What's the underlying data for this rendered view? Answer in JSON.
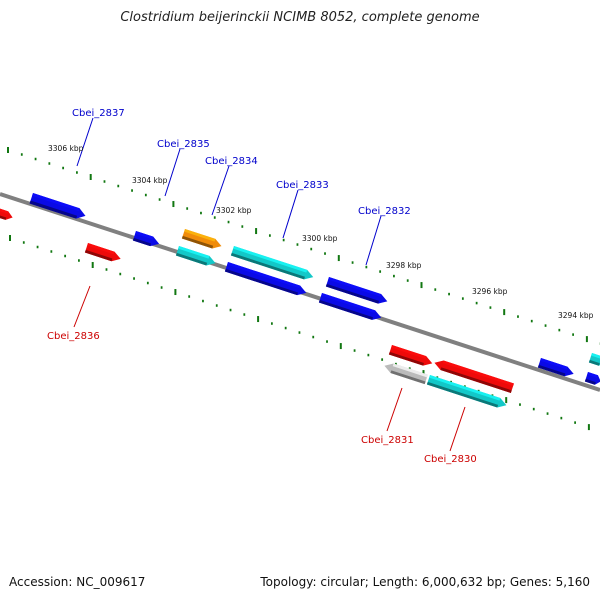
{
  "title": "Clostridium beijerinckii NCIMB 8052, complete genome",
  "footer": {
    "accession": "Accession: NC_009617",
    "summary": "Topology: circular; Length: 6,000,632 bp; Genes: 5,160"
  },
  "colors": {
    "backbone": "#808080",
    "tick": "#117711",
    "blue": "#0a0ae6",
    "red": "#ee0a0a",
    "cyan": "#13c8c8",
    "orange": "#f08c0a",
    "gray": "#bbbbbb",
    "label_top": "#0000cc",
    "label_bottom": "#cc0000"
  },
  "scale_labels": [
    "3306 kbp",
    "3304 kbp",
    "3302 kbp",
    "3300 kbp",
    "3298 kbp",
    "3296 kbp",
    "3294 kbp"
  ],
  "gene_labels_top": [
    "Cbei_2837",
    "Cbei_2835",
    "Cbei_2834",
    "Cbei_2833",
    "Cbei_2832"
  ],
  "gene_labels_bottom": [
    "Cbei_2836",
    "Cbei_2831",
    "Cbei_2830"
  ],
  "genes": [
    {
      "color": "red"
    },
    {
      "color": "blue"
    },
    {
      "color": "blue"
    },
    {
      "color": "orange"
    },
    {
      "color": "cyan"
    },
    {
      "color": "cyan"
    },
    {
      "color": "blue"
    },
    {
      "color": "blue"
    },
    {
      "color": "blue"
    },
    {
      "color": "red"
    },
    {
      "color": "red"
    },
    {
      "color": "gray"
    },
    {
      "color": "red"
    },
    {
      "color": "cyan"
    },
    {
      "color": "blue"
    },
    {
      "color": "cyan"
    },
    {
      "color": "blue"
    }
  ]
}
